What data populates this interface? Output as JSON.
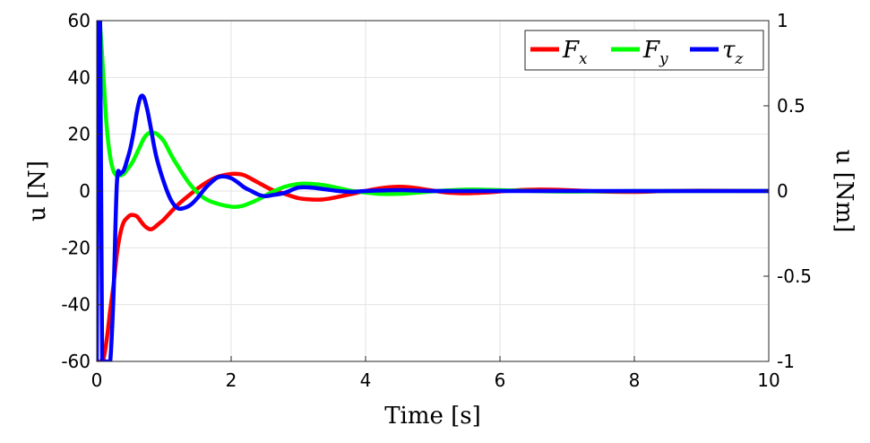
{
  "chart_data": {
    "type": "line",
    "xlabel": "Time [s]",
    "ylabel_left": "u [N]",
    "ylabel_right": "u [Nm]",
    "xlim": [
      0,
      10
    ],
    "ylim_left": [
      -60,
      60
    ],
    "ylim_right": [
      -1,
      1
    ],
    "x_ticks": [
      "0",
      "2",
      "4",
      "6",
      "8",
      "10"
    ],
    "y_ticks_left": [
      "60",
      "40",
      "20",
      "0",
      "-20",
      "-40",
      "-60"
    ],
    "y_ticks_right": [
      "1",
      "0.5",
      "0",
      "-0.5",
      "-1"
    ],
    "grid": true,
    "legend_position": "top-right",
    "series": [
      {
        "name": "F_x",
        "axis": "left",
        "color": "#ff0000",
        "x": [
          0.0,
          0.05,
          0.1,
          0.15,
          0.2,
          0.25,
          0.3,
          0.35,
          0.4,
          0.45,
          0.5,
          0.55,
          0.6,
          0.65,
          0.7,
          0.75,
          0.8,
          0.85,
          0.9,
          0.95,
          1.0,
          1.2,
          1.4,
          1.6,
          1.8,
          2.0,
          2.1,
          2.2,
          2.4,
          2.6,
          2.8,
          3.0,
          3.2,
          3.35,
          3.5,
          3.7,
          3.9,
          4.1,
          4.3,
          4.5,
          4.7,
          4.9,
          5.2,
          5.5,
          5.8,
          6.2,
          6.6,
          7.0,
          7.5,
          8.0,
          8.5,
          9.0,
          10.0
        ],
        "y": [
          -60,
          -60,
          -59,
          -52,
          -42,
          -33,
          -22,
          -15,
          -11,
          -9.5,
          -8.5,
          -8.5,
          -9,
          -10.5,
          -12,
          -13,
          -13.5,
          -13,
          -12,
          -11,
          -10,
          -5,
          -1,
          2.5,
          5,
          6,
          6,
          5.5,
          3,
          0.5,
          -1,
          -2.5,
          -3,
          -3,
          -2.5,
          -1.5,
          -0.5,
          0.5,
          1.2,
          1.5,
          1.2,
          0.5,
          -0.5,
          -0.8,
          -0.5,
          0.2,
          0.5,
          0.3,
          -0.2,
          -0.3,
          0,
          0.1,
          0
        ]
      },
      {
        "name": "F_y",
        "axis": "left",
        "color": "#00ff00",
        "x": [
          0.0,
          0.02,
          0.05,
          0.1,
          0.15,
          0.2,
          0.25,
          0.3,
          0.35,
          0.4,
          0.45,
          0.5,
          0.55,
          0.6,
          0.65,
          0.7,
          0.75,
          0.8,
          0.85,
          0.9,
          1.0,
          1.1,
          1.2,
          1.4,
          1.6,
          1.8,
          2.0,
          2.1,
          2.2,
          2.4,
          2.6,
          2.8,
          3.0,
          3.2,
          3.4,
          3.6,
          3.8,
          4.0,
          4.2,
          4.5,
          4.8,
          5.2,
          5.6,
          6.0,
          6.5,
          7.0,
          8.0,
          10.0
        ],
        "y": [
          60,
          60,
          58,
          40,
          22,
          12,
          7,
          5.5,
          5.5,
          6,
          7.5,
          9,
          11,
          13.5,
          16,
          18.5,
          20,
          20.5,
          20.5,
          20,
          17.5,
          13,
          9,
          2,
          -2.5,
          -4.5,
          -5.5,
          -5.5,
          -5,
          -3,
          -0.5,
          1.5,
          2.5,
          2.5,
          2,
          1,
          0,
          -0.5,
          -1,
          -1,
          -0.5,
          0.2,
          0.5,
          0.3,
          0,
          -0.2,
          0,
          0
        ]
      },
      {
        "name": "τ_z",
        "axis": "right",
        "color": "#0000ff",
        "x": [
          0.0,
          0.01,
          0.02,
          0.03,
          0.05,
          0.08,
          0.1,
          0.15,
          0.2,
          0.25,
          0.3,
          0.35,
          0.4,
          0.45,
          0.5,
          0.55,
          0.6,
          0.65,
          0.7,
          0.75,
          0.8,
          0.85,
          0.9,
          1.0,
          1.1,
          1.2,
          1.3,
          1.4,
          1.5,
          1.6,
          1.7,
          1.8,
          1.9,
          2.0,
          2.1,
          2.2,
          2.3,
          2.4,
          2.5,
          2.6,
          2.8,
          3.0,
          3.2,
          3.4,
          3.6,
          3.8,
          4.0,
          4.5,
          5.0,
          6.0,
          7.0,
          8.0,
          10.0
        ],
        "y": [
          -1,
          0,
          1,
          1,
          1,
          -1,
          -1,
          -1,
          -1,
          -0.6,
          0.05,
          0.1,
          0.12,
          0.18,
          0.25,
          0.35,
          0.47,
          0.55,
          0.55,
          0.48,
          0.38,
          0.27,
          0.18,
          0.05,
          -0.05,
          -0.1,
          -0.1,
          -0.08,
          -0.04,
          0.01,
          0.05,
          0.08,
          0.085,
          0.075,
          0.05,
          0.02,
          0,
          -0.02,
          -0.03,
          -0.025,
          -0.01,
          0.02,
          0.02,
          0.01,
          0,
          -0.005,
          0,
          0.005,
          0,
          0,
          0,
          0,
          0
        ]
      }
    ]
  }
}
